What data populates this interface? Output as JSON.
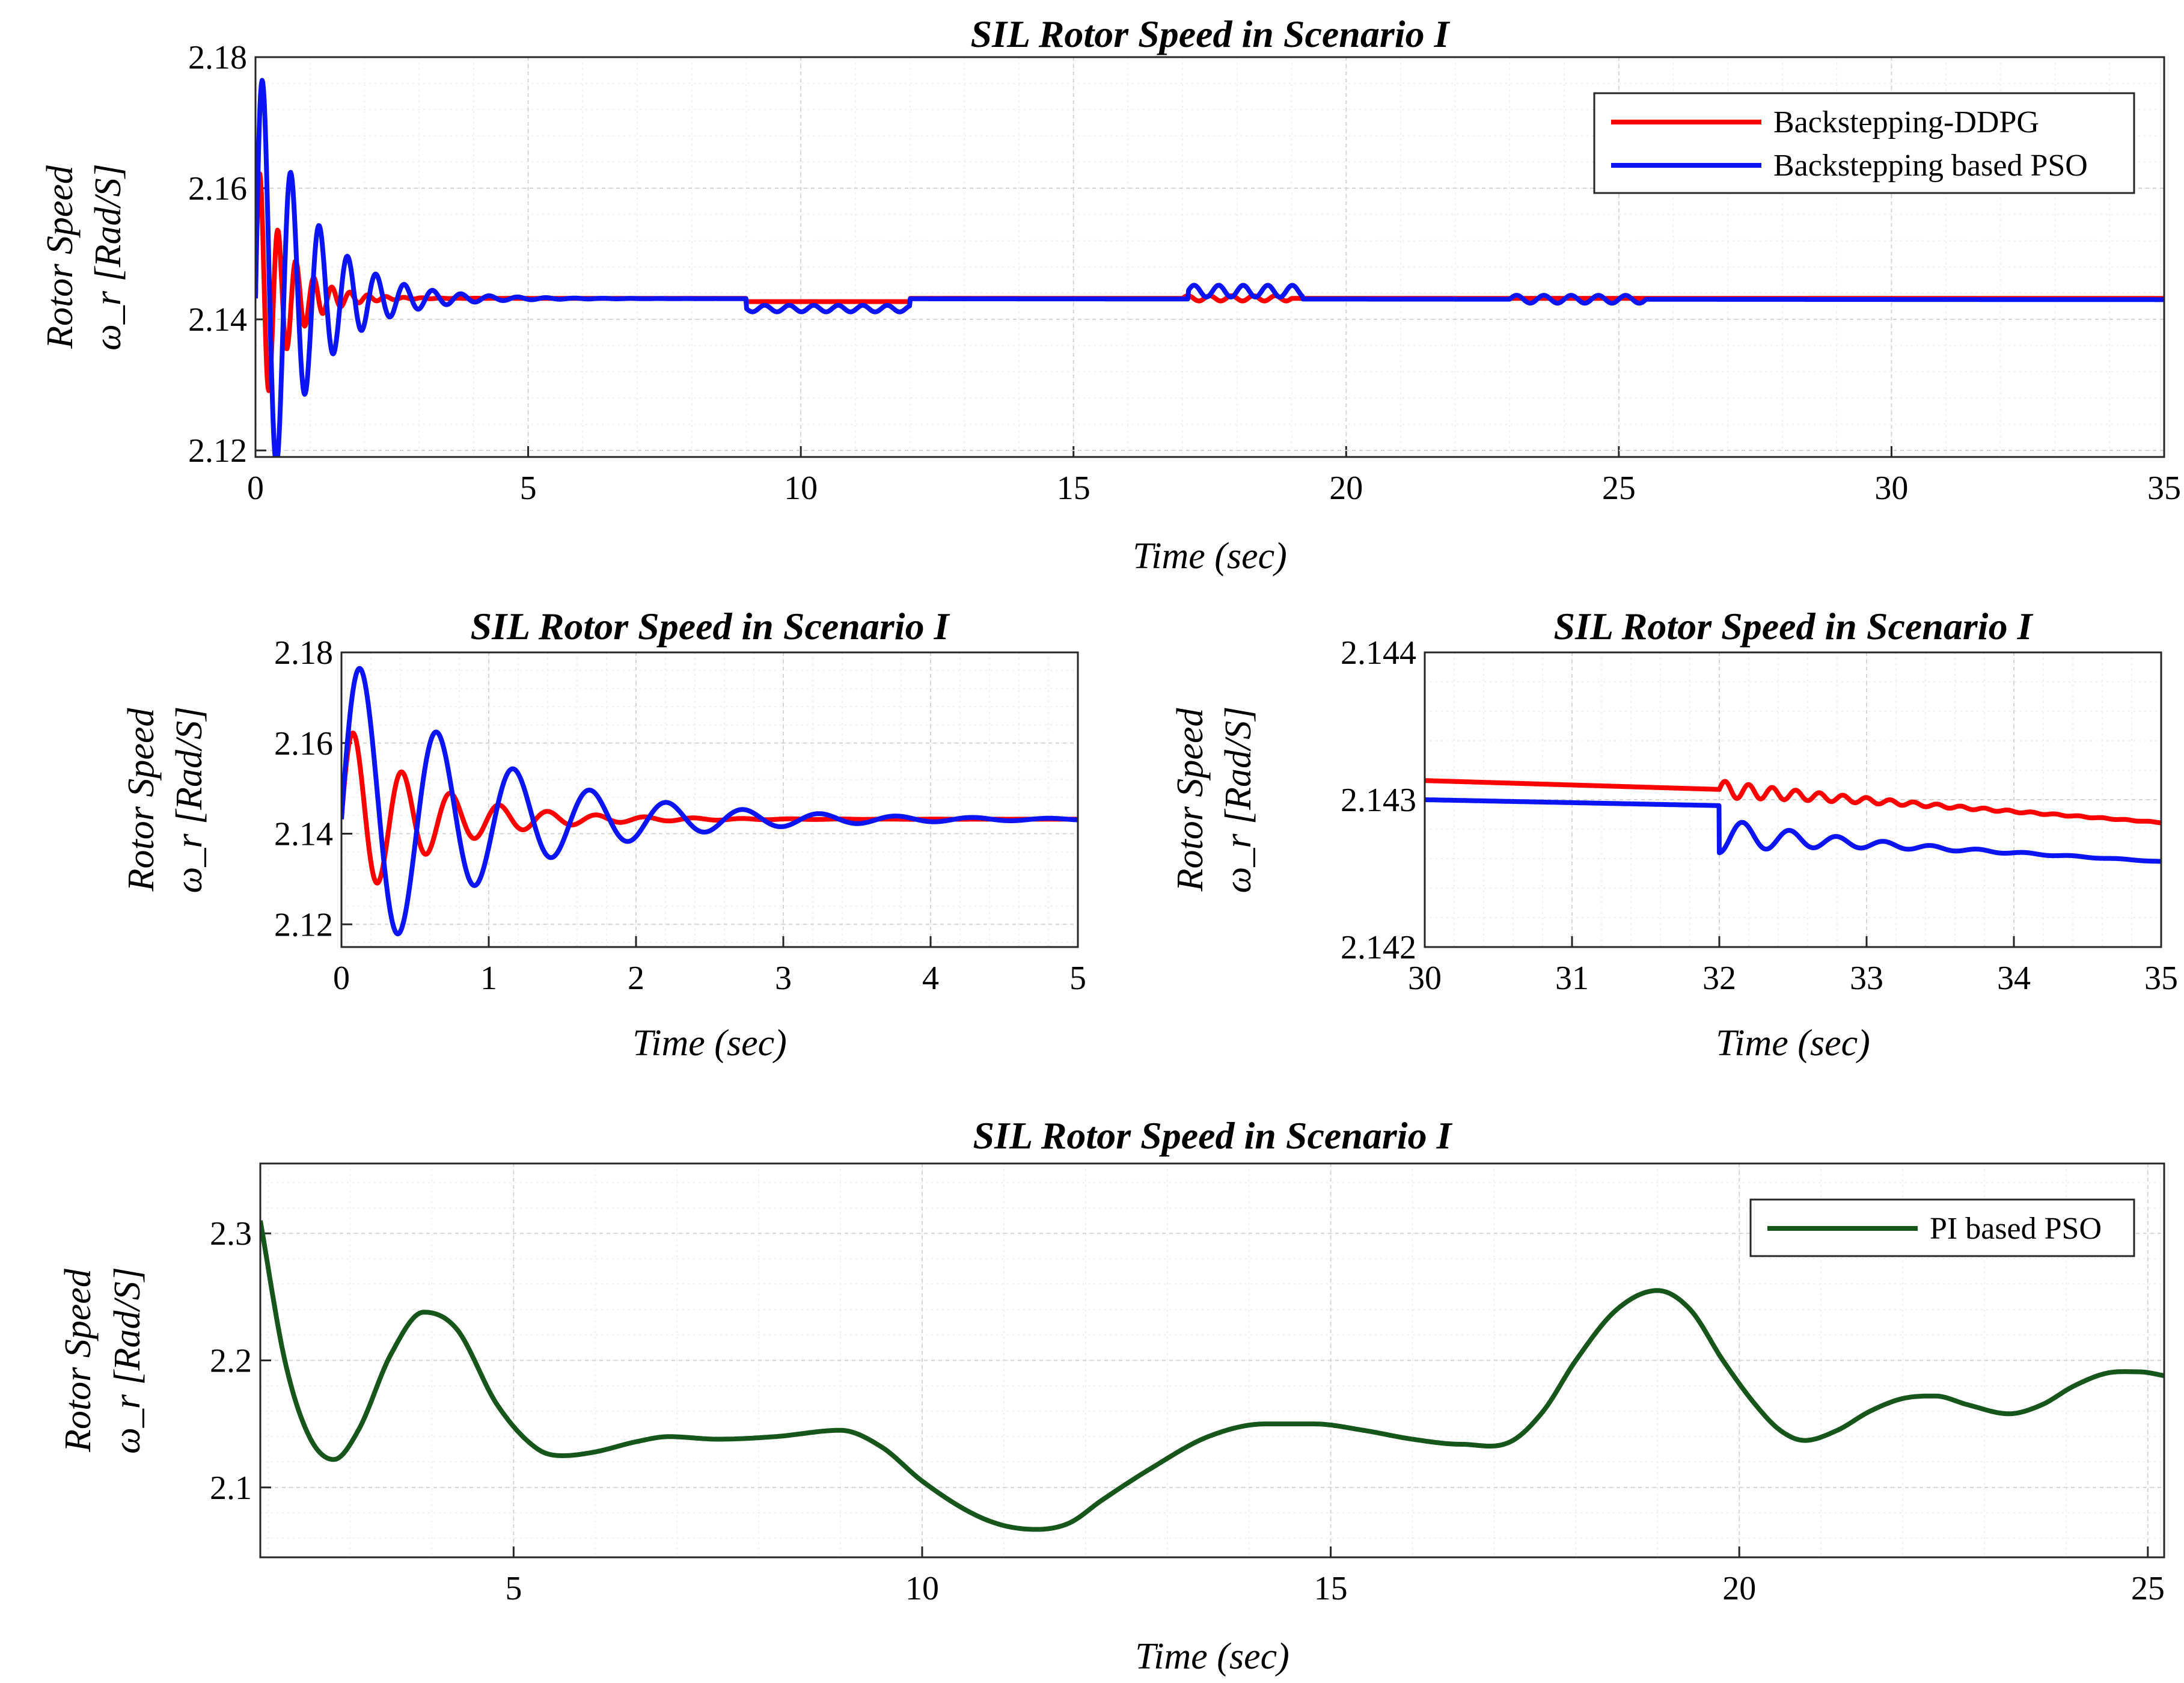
{
  "colors": {
    "ddpg": "#ff0000",
    "pso": "#0a14f5",
    "pi": "#17561b"
  },
  "chart_data": [
    {
      "id": "top",
      "type": "line",
      "title": "SIL Rotor Speed in Scenario I",
      "xlabel": "Time (sec)",
      "ylabel_line1": "Rotor Speed",
      "ylabel_line2": "ω_r [Rad/S]",
      "xlim": [
        0,
        35
      ],
      "ylim": [
        2.119,
        2.18
      ],
      "xticks": [
        0,
        5,
        10,
        15,
        20,
        25,
        30,
        35
      ],
      "xtick_labels": [
        "0",
        "5",
        "10",
        "15",
        "20",
        "25",
        "30",
        "35"
      ],
      "yticks": [
        2.12,
        2.14,
        2.16,
        2.18
      ],
      "ytick_labels": [
        "2.12",
        "2.14",
        "2.16",
        "2.18"
      ],
      "legend": [
        "Backstepping-DDPG",
        "Backstepping based PSO"
      ],
      "legend_loc": "top-right",
      "series": [
        {
          "name": "Backstepping-DDPG",
          "color_key": "ddpg",
          "model": "ddpg",
          "t_end": 35
        },
        {
          "name": "Backstepping based PSO",
          "color_key": "pso",
          "model": "pso",
          "t_end": 35
        }
      ]
    },
    {
      "id": "zoom1",
      "type": "line",
      "title": "SIL Rotor Speed in Scenario I",
      "xlabel": "Time (sec)",
      "ylabel_line1": "Rotor Speed",
      "ylabel_line2": "ω_r [Rad/S]",
      "xlim": [
        0,
        5
      ],
      "ylim": [
        2.115,
        2.18
      ],
      "xticks": [
        0,
        1,
        2,
        3,
        4,
        5
      ],
      "xtick_labels": [
        "0",
        "1",
        "2",
        "3",
        "4",
        "5"
      ],
      "yticks": [
        2.12,
        2.14,
        2.16,
        2.18
      ],
      "ytick_labels": [
        "2.12",
        "2.14",
        "2.16",
        "2.18"
      ],
      "series": [
        {
          "name": "Backstepping-DDPG",
          "color_key": "ddpg",
          "model": "ddpg",
          "t_end": 5
        },
        {
          "name": "Backstepping based PSO",
          "color_key": "pso",
          "model": "pso",
          "t_end": 5
        }
      ]
    },
    {
      "id": "zoom2",
      "type": "line",
      "title": "SIL Rotor Speed in Scenario I",
      "xlabel": "Time (sec)",
      "ylabel_line1": "Rotor Speed",
      "ylabel_line2": "ω_r [Rad/S]",
      "xlim": [
        30,
        35
      ],
      "ylim": [
        2.142,
        2.144
      ],
      "xticks": [
        30,
        31,
        32,
        33,
        34,
        35
      ],
      "xtick_labels": [
        "30",
        "31",
        "32",
        "33",
        "34",
        "35"
      ],
      "yticks": [
        2.142,
        2.143,
        2.144
      ],
      "ytick_labels": [
        "2.142",
        "2.143",
        "2.144"
      ],
      "series": [
        {
          "name": "Backstepping-DDPG",
          "color_key": "ddpg",
          "model": "ddpg_tail",
          "t_end": 35
        },
        {
          "name": "Backstepping based PSO",
          "color_key": "pso",
          "model": "pso_tail",
          "t_end": 35
        }
      ]
    },
    {
      "id": "bottom",
      "type": "line",
      "title": "SIL Rotor Speed in Scenario I",
      "xlabel": "Time (sec)",
      "ylabel_line1": "Rotor Speed",
      "ylabel_line2": "ω_r [Rad/S]",
      "xlim": [
        1.9,
        25.2
      ],
      "ylim": [
        2.045,
        2.355
      ],
      "xticks": [
        5,
        10,
        15,
        20,
        25
      ],
      "xtick_labels": [
        "5",
        "10",
        "15",
        "20",
        "25"
      ],
      "yticks": [
        2.1,
        2.2,
        2.3
      ],
      "ytick_labels": [
        "2.1",
        "2.2",
        "2.3"
      ],
      "legend": [
        "PI based PSO"
      ],
      "legend_loc": "top-right",
      "series": [
        {
          "name": "PI based PSO",
          "color_key": "pi",
          "x": [
            1.9,
            2.2,
            2.5,
            2.8,
            3.1,
            3.5,
            3.9,
            4.3,
            4.8,
            5.3,
            5.6,
            6.0,
            6.5,
            6.9,
            7.5,
            8.2,
            9.0,
            9.5,
            10.0,
            10.6,
            11.0,
            11.4,
            11.8,
            12.2,
            12.8,
            13.5,
            14.2,
            14.8,
            15.4,
            16.0,
            16.6,
            17.2,
            17.6,
            18.0,
            18.5,
            19.0,
            19.4,
            19.8,
            20.2,
            20.5,
            20.8,
            21.2,
            21.6,
            22.0,
            22.4,
            22.8,
            23.3,
            23.7,
            24.1,
            24.5,
            24.9,
            25.2
          ],
          "y": [
            2.31,
            2.2,
            2.14,
            2.122,
            2.145,
            2.205,
            2.238,
            2.225,
            2.165,
            2.13,
            2.125,
            2.128,
            2.136,
            2.14,
            2.138,
            2.14,
            2.145,
            2.132,
            2.105,
            2.08,
            2.07,
            2.067,
            2.072,
            2.09,
            2.115,
            2.14,
            2.15,
            2.15,
            2.145,
            2.138,
            2.134,
            2.136,
            2.16,
            2.2,
            2.24,
            2.255,
            2.24,
            2.2,
            2.165,
            2.145,
            2.137,
            2.145,
            2.16,
            2.17,
            2.172,
            2.165,
            2.158,
            2.165,
            2.18,
            2.19,
            2.191,
            2.188
          ]
        }
      ]
    }
  ]
}
